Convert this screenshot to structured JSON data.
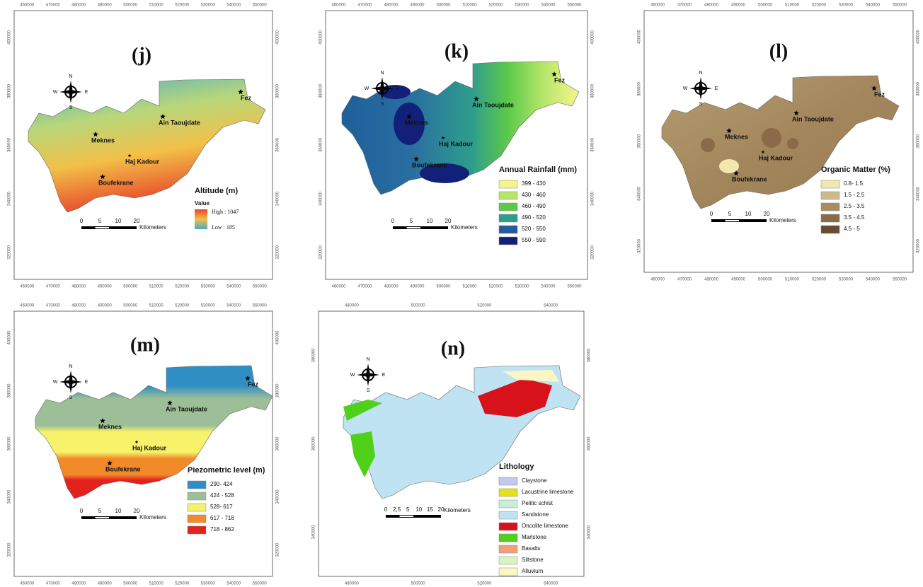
{
  "panels": [
    {
      "label": "(j)",
      "compass": [
        "N",
        "W",
        "E",
        "S"
      ],
      "places": [
        "Fez",
        "Ain Taoujdate",
        "Meknes",
        "Haj Kadour",
        "Boufekrane"
      ],
      "legend": {
        "title": "Altitude (m)",
        "subtitle": "Value",
        "high": "High : 1047",
        "low": "Low : 185"
      },
      "scale": {
        "ticks": [
          "0",
          "5",
          "10",
          "20"
        ],
        "unit": "Kilometers"
      },
      "xcoords": [
        460000,
        470000,
        480000,
        490000,
        500000,
        510000,
        520000,
        530000,
        540000,
        550000
      ],
      "ycoords": [
        400000,
        380000,
        360000,
        340000,
        320000
      ]
    },
    {
      "label": "(k)",
      "compass": [
        "N",
        "W",
        "E",
        "S"
      ],
      "places": [
        "Fez",
        "Ain Taoujdate",
        "Meknes",
        "Haj Kadour",
        "Boufekrane"
      ],
      "legend": {
        "title": "Annual Rainfall (mm)",
        "entries": [
          {
            "text": "399 - 430",
            "color": "#f6f58c"
          },
          {
            "text": "430 - 460",
            "color": "#b5e66a"
          },
          {
            "text": "460 - 490",
            "color": "#5cc94a"
          },
          {
            "text": "490 - 520",
            "color": "#2e9e8c"
          },
          {
            "text": "520 - 550",
            "color": "#255a9c"
          },
          {
            "text": "550 - 590",
            "color": "#12207a"
          }
        ]
      },
      "scale": {
        "ticks": [
          "0",
          "5",
          "10",
          "20"
        ],
        "unit": "Kilometers"
      },
      "xcoords": [
        460000,
        470000,
        480000,
        490000,
        500000,
        510000,
        520000,
        530000,
        540000,
        550000
      ],
      "ycoords": [
        400000,
        380000,
        360000,
        340000,
        320000
      ]
    },
    {
      "label": "(l)",
      "compass": [
        "N",
        "W",
        "E",
        "S"
      ],
      "places": [
        "Fez",
        "Ain Taoujdate",
        "Meknes",
        "Haj Kadour",
        "Boufekrane"
      ],
      "legend": {
        "title": "Organic Matter (%)",
        "entries": [
          {
            "text": "0.8- 1.5",
            "color": "#f2e7b0"
          },
          {
            "text": "1.5 - 2.5",
            "color": "#cdb98a"
          },
          {
            "text": "2.5 - 3.5",
            "color": "#a88d62"
          },
          {
            "text": "3.5 - 4.5",
            "color": "#8a6a48"
          },
          {
            "text": "4.5 - 5",
            "color": "#6a4a30"
          }
        ]
      },
      "scale": {
        "ticks": [
          "0",
          "5",
          "10",
          "20"
        ],
        "unit": "Kilometers"
      },
      "xcoords": [
        460000,
        470000,
        480000,
        490000,
        500000,
        510000,
        520000,
        530000,
        540000,
        550000
      ],
      "ycoords": [
        400000,
        380000,
        360000,
        340000,
        320000
      ]
    },
    {
      "label": "(m)",
      "compass": [
        "N",
        "W",
        "E",
        "S"
      ],
      "places": [
        "Fez",
        "Ain Taoujdate",
        "Meknes",
        "Haj Kadour",
        "Boufekrane"
      ],
      "legend": {
        "title": "Piezometric level (m)",
        "entries": [
          {
            "text": "290- 424",
            "color": "#2f8fc4"
          },
          {
            "text": "424 - 528",
            "color": "#9dbf97"
          },
          {
            "text": "528- 617",
            "color": "#f6f26a"
          },
          {
            "text": "617 - 718",
            "color": "#f28a2a"
          },
          {
            "text": "718 - 862",
            "color": "#e3221e"
          }
        ]
      },
      "scale": {
        "ticks": [
          "0",
          "5",
          "10",
          "20"
        ],
        "unit": "Kilometers"
      },
      "xcoords": [
        460000,
        470000,
        480000,
        490000,
        500000,
        510000,
        520000,
        530000,
        540000,
        550000
      ],
      "ycoords": [
        400000,
        380000,
        360000,
        340000,
        320000
      ]
    },
    {
      "label": "(n)",
      "compass": [
        "N",
        "W",
        "E",
        "S"
      ],
      "places": [],
      "legend": {
        "title": "Lithology",
        "entries": [
          {
            "text": "Claystone",
            "color": "#c4c8ee"
          },
          {
            "text": "Lacustrine limestone",
            "color": "#e6e01a"
          },
          {
            "text": "Pelitic schist",
            "color": "#c8efdc"
          },
          {
            "text": "Sandstone",
            "color": "#bfe3f2"
          },
          {
            "text": "Oncolite limestone",
            "color": "#d8121a"
          },
          {
            "text": "Marlstone",
            "color": "#4fd11c"
          },
          {
            "text": "Basalts",
            "color": "#f0a078"
          },
          {
            "text": "Siltstone",
            "color": "#d6f5c2"
          },
          {
            "text": "Alluvium",
            "color": "#fbf7c4"
          }
        ]
      },
      "scale": {
        "ticks": [
          "0",
          "2,5",
          "5",
          "10",
          "15",
          "20"
        ],
        "unit": "Kilometers"
      },
      "xcoords": [
        480000,
        500000,
        520000,
        540000
      ],
      "ycoords": [
        380000,
        360000,
        340000
      ]
    }
  ]
}
